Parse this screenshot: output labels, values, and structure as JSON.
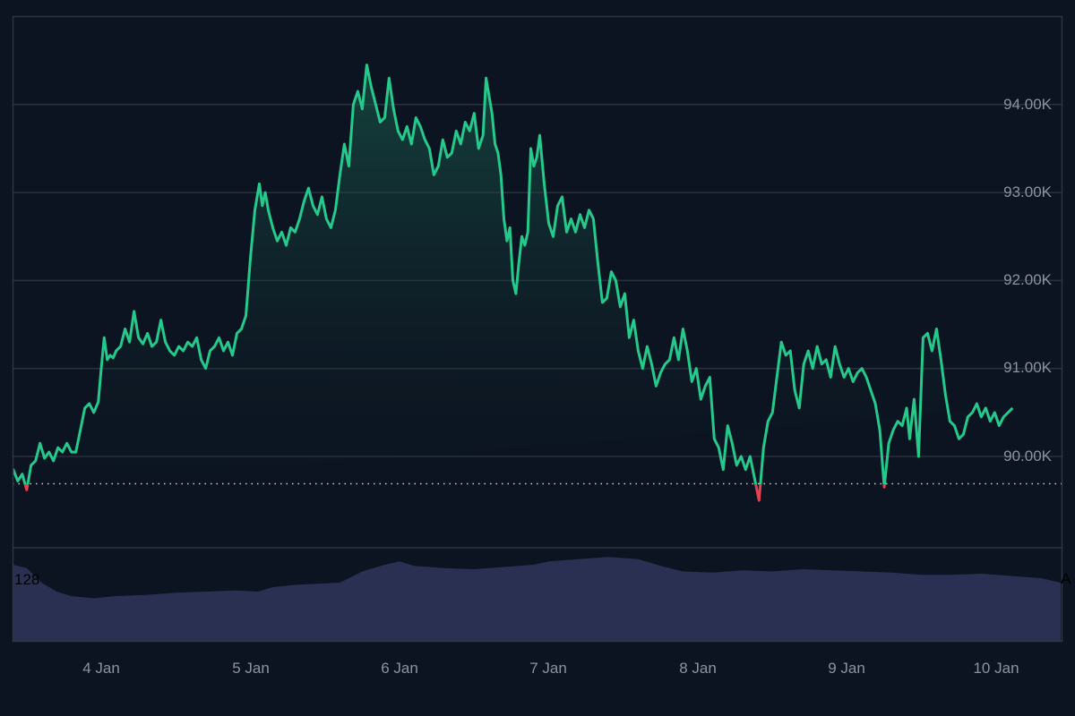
{
  "chart_data": {
    "type": "area",
    "title": "",
    "xlabel": "",
    "ylabel": "",
    "x_ticks": [
      "4 Jan",
      "5 Jan",
      "6 Jan",
      "7 Jan",
      "8 Jan",
      "9 Jan",
      "10 Jan"
    ],
    "y_ticks": [
      "90.00K",
      "91.00K",
      "92.00K",
      "93.00K",
      "94.00K"
    ],
    "ylim": [
      88.7,
      95.0
    ],
    "grid": true,
    "baseline": {
      "value": 89.69,
      "style": "dotted"
    },
    "colors": {
      "up": "#26c98c",
      "down": "#e5404e",
      "volume": "#2a3052",
      "background": "#0c1421",
      "grid": "#2a3140",
      "text": "#8b93a3"
    },
    "series": [
      {
        "name": "price",
        "unit": "K",
        "x_day": [
          3.38,
          3.41,
          3.44,
          3.47,
          3.5,
          3.53,
          3.56,
          3.59,
          3.62,
          3.65,
          3.68,
          3.71,
          3.74,
          3.77,
          3.8,
          3.83,
          3.86,
          3.89,
          3.92,
          3.95,
          3.98,
          4.0,
          4.02,
          4.04,
          4.06,
          4.08,
          4.1,
          4.13,
          4.16,
          4.19,
          4.22,
          4.25,
          4.28,
          4.31,
          4.34,
          4.37,
          4.4,
          4.43,
          4.46,
          4.49,
          4.52,
          4.55,
          4.58,
          4.61,
          4.64,
          4.67,
          4.7,
          4.73,
          4.76,
          4.79,
          4.82,
          4.85,
          4.88,
          4.91,
          4.94,
          4.97,
          5.0,
          5.03,
          5.06,
          5.08,
          5.1,
          5.12,
          5.15,
          5.18,
          5.21,
          5.24,
          5.27,
          5.3,
          5.33,
          5.36,
          5.39,
          5.42,
          5.45,
          5.48,
          5.51,
          5.54,
          5.57,
          5.6,
          5.63,
          5.66,
          5.69,
          5.72,
          5.75,
          5.78,
          5.81,
          5.84,
          5.87,
          5.9,
          5.93,
          5.96,
          5.99,
          6.02,
          6.05,
          6.08,
          6.11,
          6.14,
          6.17,
          6.2,
          6.23,
          6.26,
          6.29,
          6.32,
          6.35,
          6.38,
          6.41,
          6.44,
          6.47,
          6.5,
          6.53,
          6.56,
          6.58,
          6.6,
          6.62,
          6.64,
          6.66,
          6.68,
          6.7,
          6.72,
          6.74,
          6.76,
          6.78,
          6.8,
          6.82,
          6.84,
          6.86,
          6.88,
          6.9,
          6.92,
          6.94,
          6.97,
          7.0,
          7.03,
          7.06,
          7.09,
          7.12,
          7.15,
          7.18,
          7.21,
          7.24,
          7.27,
          7.3,
          7.33,
          7.36,
          7.39,
          7.42,
          7.45,
          7.48,
          7.51,
          7.54,
          7.57,
          7.6,
          7.63,
          7.66,
          7.69,
          7.72,
          7.75,
          7.78,
          7.81,
          7.84,
          7.87,
          7.9,
          7.93,
          7.96,
          7.99,
          8.02,
          8.05,
          8.08,
          8.11,
          8.14,
          8.17,
          8.2,
          8.23,
          8.26,
          8.29,
          8.32,
          8.35,
          8.38,
          8.41,
          8.44,
          8.47,
          8.5,
          8.53,
          8.56,
          8.59,
          8.62,
          8.65,
          8.68,
          8.71,
          8.74,
          8.77,
          8.8,
          8.83,
          8.86,
          8.89,
          8.92,
          8.95,
          8.98,
          9.01,
          9.04,
          9.07,
          9.1,
          9.13,
          9.16,
          9.19,
          9.22,
          9.25,
          9.28,
          9.31,
          9.34,
          9.37,
          9.4,
          9.42,
          9.45,
          9.48,
          9.51,
          9.54,
          9.57,
          9.6,
          9.63,
          9.66,
          9.69,
          9.72,
          9.75,
          9.78,
          9.81,
          9.84,
          9.87,
          9.9,
          9.93,
          9.96,
          9.99,
          10.02,
          10.05,
          10.08,
          10.11,
          10.14,
          10.17,
          10.2,
          10.23,
          10.26,
          10.29,
          10.32,
          10.35,
          10.38,
          10.41,
          10.44
        ],
        "values": [
          89.65,
          89.85,
          89.72,
          89.8,
          89.62,
          89.9,
          89.95,
          90.15,
          89.98,
          90.05,
          89.95,
          90.1,
          90.05,
          90.15,
          90.05,
          90.05,
          90.3,
          90.55,
          90.6,
          90.5,
          90.62,
          91.0,
          91.35,
          91.1,
          91.15,
          91.12,
          91.2,
          91.25,
          91.45,
          91.3,
          91.65,
          91.35,
          91.28,
          91.4,
          91.25,
          91.3,
          91.55,
          91.3,
          91.2,
          91.15,
          91.25,
          91.2,
          91.3,
          91.25,
          91.35,
          91.1,
          91.0,
          91.2,
          91.25,
          91.35,
          91.2,
          91.3,
          91.15,
          91.4,
          91.45,
          91.6,
          92.25,
          92.8,
          93.1,
          92.85,
          93.0,
          92.8,
          92.6,
          92.45,
          92.55,
          92.4,
          92.6,
          92.55,
          92.7,
          92.9,
          93.05,
          92.85,
          92.75,
          92.95,
          92.7,
          92.6,
          92.8,
          93.2,
          93.55,
          93.3,
          94.0,
          94.15,
          93.95,
          94.45,
          94.2,
          94.0,
          93.8,
          93.85,
          94.3,
          93.95,
          93.7,
          93.6,
          93.75,
          93.55,
          93.85,
          93.75,
          93.6,
          93.5,
          93.2,
          93.3,
          93.6,
          93.4,
          93.45,
          93.7,
          93.55,
          93.8,
          93.7,
          93.9,
          93.5,
          93.65,
          94.3,
          94.1,
          93.9,
          93.55,
          93.45,
          93.2,
          92.7,
          92.45,
          92.6,
          92.0,
          91.85,
          92.2,
          92.5,
          92.4,
          92.55,
          93.5,
          93.3,
          93.4,
          93.65,
          93.1,
          92.65,
          92.5,
          92.85,
          92.95,
          92.55,
          92.7,
          92.55,
          92.75,
          92.6,
          92.8,
          92.7,
          92.2,
          91.75,
          91.8,
          92.1,
          92.0,
          91.7,
          91.85,
          91.35,
          91.55,
          91.2,
          91.0,
          91.25,
          91.05,
          90.8,
          90.95,
          91.05,
          91.1,
          91.35,
          91.1,
          91.45,
          91.2,
          90.85,
          91.0,
          90.65,
          90.8,
          90.9,
          90.2,
          90.1,
          89.85,
          90.35,
          90.15,
          89.9,
          90.0,
          89.85,
          90.0,
          89.75,
          89.5,
          90.1,
          90.4,
          90.5,
          90.9,
          91.3,
          91.15,
          91.2,
          90.75,
          90.55,
          91.05,
          91.2,
          91.0,
          91.25,
          91.05,
          91.1,
          90.9,
          91.25,
          91.05,
          90.9,
          91.0,
          90.85,
          90.95,
          91.0,
          90.9,
          90.75,
          90.6,
          90.3,
          89.65,
          90.15,
          90.3,
          90.4,
          90.35,
          90.55,
          90.2,
          90.65,
          90.0,
          91.35,
          91.4,
          91.2,
          91.45,
          91.1,
          90.7,
          90.4,
          90.35,
          90.2,
          90.25,
          90.45,
          90.5,
          90.6,
          90.45,
          90.55,
          90.4,
          90.5,
          90.35,
          90.45,
          90.5,
          90.55
        ]
      },
      {
        "name": "volume",
        "label": "128",
        "x_day": [
          3.38,
          3.5,
          3.6,
          3.7,
          3.8,
          3.95,
          4.1,
          4.3,
          4.5,
          4.7,
          4.9,
          5.05,
          5.15,
          5.3,
          5.45,
          5.6,
          5.75,
          5.9,
          6.0,
          6.1,
          6.3,
          6.5,
          6.7,
          6.9,
          7.0,
          7.2,
          7.4,
          7.6,
          7.75,
          7.9,
          8.1,
          8.3,
          8.5,
          8.7,
          8.9,
          9.1,
          9.3,
          9.5,
          9.7,
          9.9,
          10.1,
          10.3,
          10.44
        ],
        "values": [
          128,
          125,
          112,
          104,
          100,
          98,
          100,
          101,
          103,
          104,
          105,
          104,
          108,
          110,
          111,
          112,
          122,
          128,
          131,
          127,
          125,
          124,
          126,
          128,
          131,
          133,
          135,
          133,
          127,
          122,
          121,
          123,
          122,
          124,
          123,
          122,
          121,
          119,
          119,
          120,
          118,
          116,
          112
        ]
      }
    ]
  },
  "axis": {
    "y_labels": [
      "94.00K",
      "93.00K",
      "92.00K",
      "91.00K",
      "90.00K"
    ],
    "x_labels": [
      "4 Jan",
      "5 Jan",
      "6 Jan",
      "7 Jan",
      "8 Jan",
      "9 Jan",
      "10 Jan"
    ],
    "volume_label": "128",
    "volume_right_label": "A"
  }
}
